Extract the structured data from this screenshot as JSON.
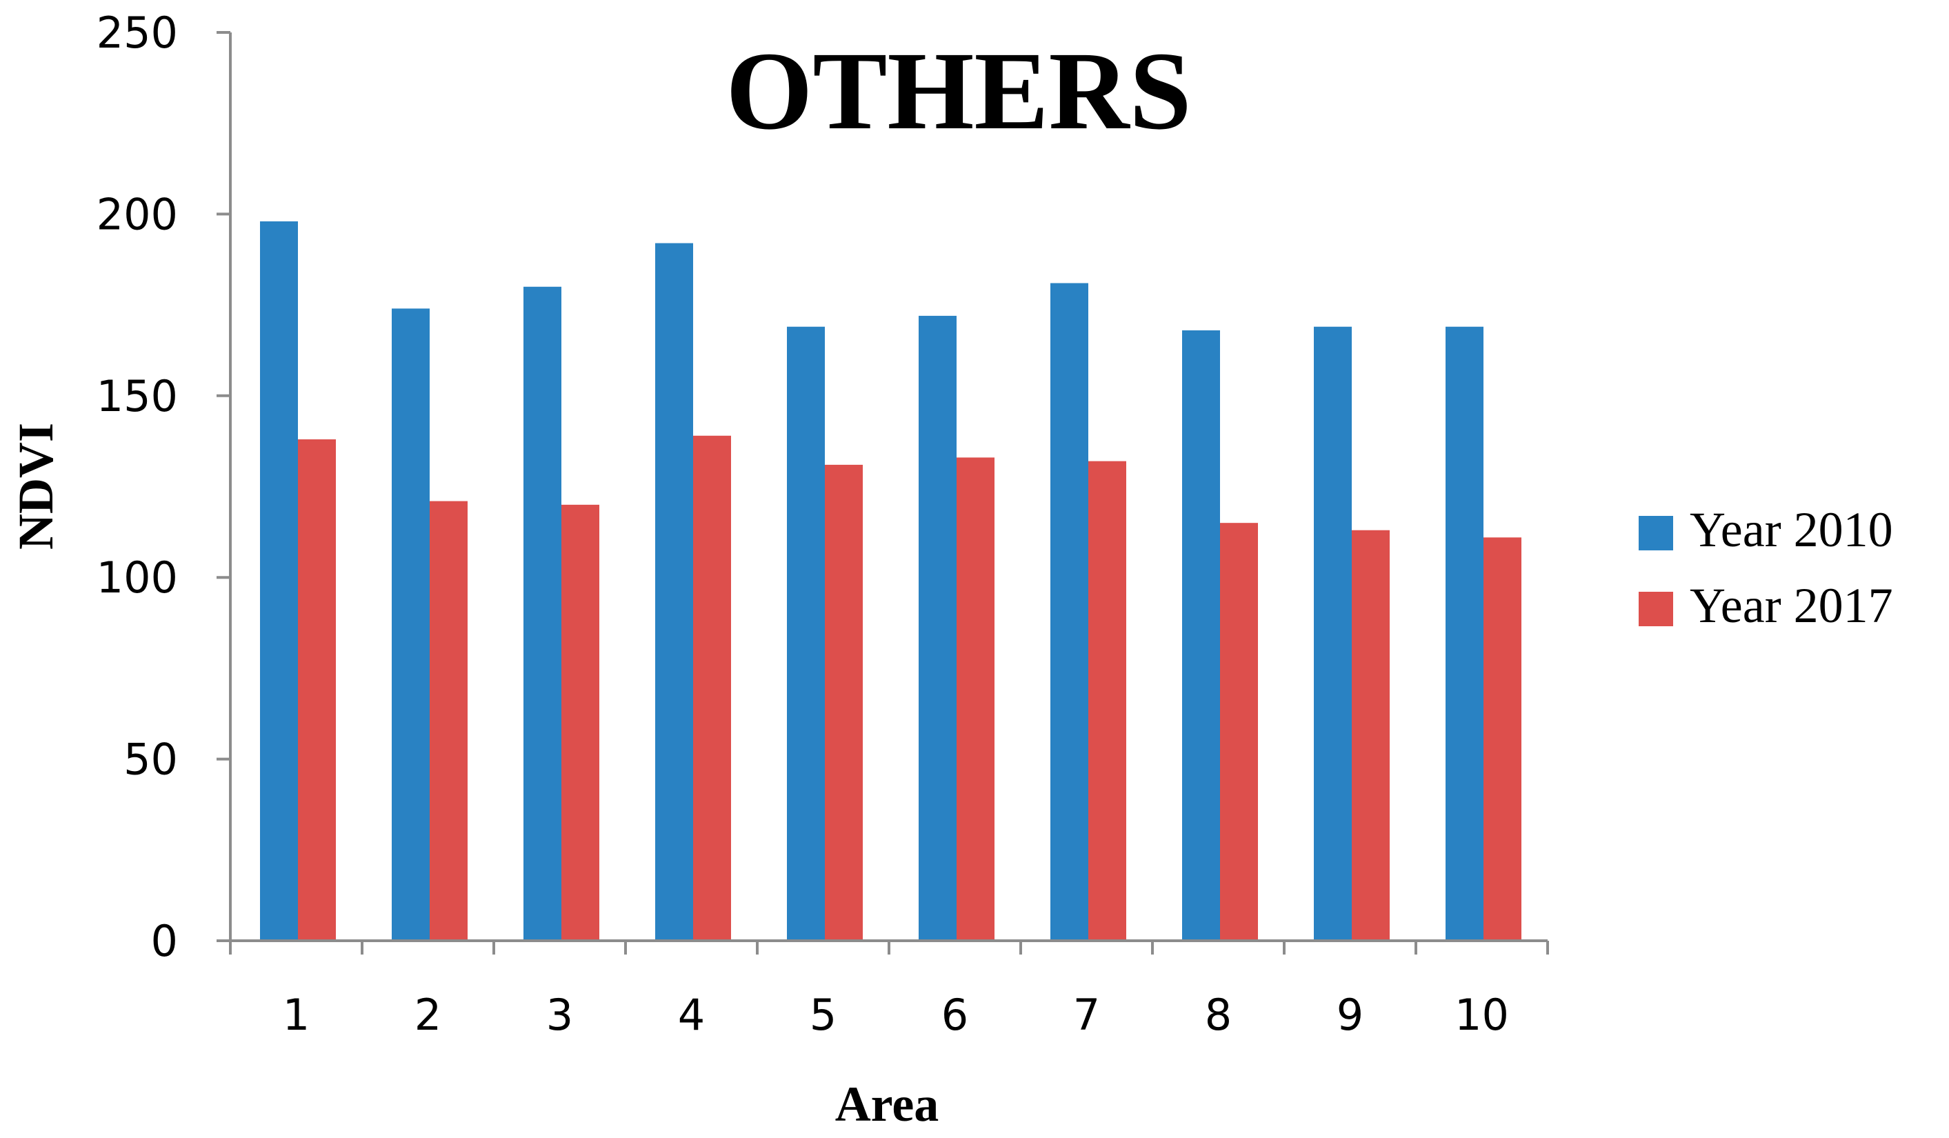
{
  "chart_data": {
    "type": "bar",
    "title": "OTHERS",
    "xlabel": "Area",
    "ylabel": "NDVI",
    "categories": [
      "1",
      "2",
      "3",
      "4",
      "5",
      "6",
      "7",
      "8",
      "9",
      "10"
    ],
    "series": [
      {
        "name": "Year 2010",
        "color": "#2982c3",
        "values": [
          198,
          174,
          180,
          192,
          169,
          172,
          181,
          168,
          169,
          169
        ]
      },
      {
        "name": "Year 2017",
        "color": "#dd4f4c",
        "values": [
          138,
          121,
          120,
          139,
          131,
          133,
          132,
          115,
          113,
          111
        ]
      }
    ],
    "ylim": [
      0,
      250
    ],
    "yticks": [
      "0",
      "50",
      "100",
      "150",
      "200",
      "250"
    ],
    "grid": false,
    "legend_position": "right"
  }
}
